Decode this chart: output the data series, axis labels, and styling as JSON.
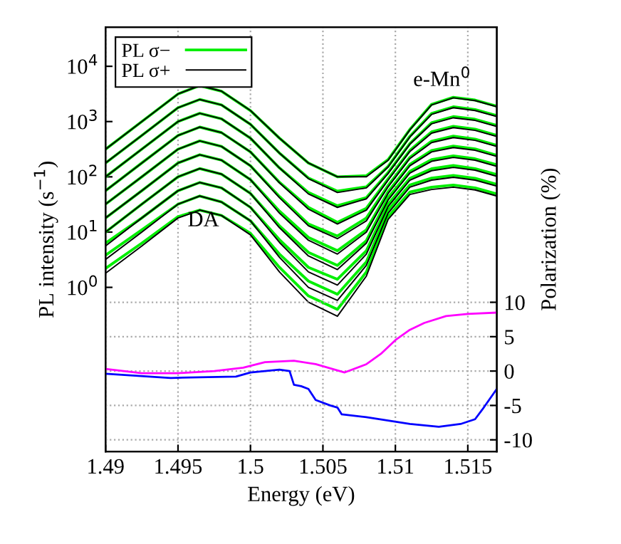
{
  "chart_data": {
    "type": "line",
    "xlabel": "Energy (eV)",
    "ylabel": "PL intensity (s$^{−1}$)",
    "y2label": "Polarization (%)",
    "x": [
      1.49,
      1.4925,
      1.495,
      1.4965,
      1.498,
      1.5,
      1.502,
      1.504,
      1.506,
      1.508,
      1.5095,
      1.511,
      1.5125,
      1.514,
      1.5155,
      1.517
    ],
    "xlim": [
      1.49,
      1.517
    ],
    "xticks": [
      1.49,
      1.495,
      1.5,
      1.505,
      1.51,
      1.515
    ],
    "log": "y",
    "ylim": [
      0.00107,
      51000
    ],
    "yticks": [
      {
        "value": 1,
        "label": "10$^{0}$"
      },
      {
        "value": 10,
        "label": "10$^{1}$"
      },
      {
        "value": 100,
        "label": "10$^{2}$"
      },
      {
        "value": 1000,
        "label": "10$^{3}$"
      },
      {
        "value": 10000,
        "label": "10$^{4}$"
      }
    ],
    "y2lim": [
      -11.7,
      50
    ],
    "y2ticks": [
      -10,
      -5,
      0,
      5,
      10
    ],
    "grid": true,
    "legend": "top left",
    "annotations": [
      "DA",
      "e-Mn$^{0}$"
    ],
    "series": [
      {
        "name": "PL σ−",
        "color": "#00ee00",
        "values": [
          316,
          1000,
          3160,
          4470,
          3550,
          1580,
          501,
          178,
          100,
          105,
          205,
          720,
          2050,
          2750,
          2450,
          1900
        ]
      },
      {
        "color": "#00ee00",
        "values": [
          178,
          560,
          1780,
          2510,
          2000,
          891,
          269,
          95,
          55,
          66,
          155,
          540,
          1400,
          1850,
          1650,
          1280
        ]
      },
      {
        "color": "#00ee00",
        "values": [
          100,
          316,
          1000,
          1410,
          1120,
          501,
          145,
          52,
          30,
          42,
          120,
          400,
          950,
          1230,
          1100,
          850
        ]
      },
      {
        "color": "#00ee00",
        "values": [
          56,
          178,
          560,
          794,
          631,
          282,
          80,
          28,
          15,
          27,
          92,
          300,
          650,
          820,
          730,
          560
        ]
      },
      {
        "color": "#00ee00",
        "values": [
          32,
          100,
          316,
          447,
          355,
          158,
          44,
          14,
          8.5,
          18,
          70,
          225,
          440,
          545,
          480,
          370
        ]
      },
      {
        "color": "#00ee00",
        "values": [
          18,
          56,
          178,
          251,
          200,
          89,
          24,
          8.0,
          4.6,
          11,
          54,
          168,
          300,
          360,
          320,
          245
        ]
      },
      {
        "color": "#00ee00",
        "values": [
          10,
          32,
          100,
          141,
          112,
          50,
          13,
          4.3,
          2.5,
          7.0,
          42,
          125,
          205,
          240,
          212,
          165
        ]
      },
      {
        "color": "#00ee00",
        "values": [
          6.3,
          18,
          56,
          79,
          63,
          28,
          7.3,
          2.3,
          1.4,
          4.6,
          32,
          94,
          140,
          160,
          140,
          110
        ]
      },
      {
        "color": "#00ee00",
        "values": [
          3.8,
          11,
          32,
          45,
          35,
          16,
          4.0,
          1.3,
          0.75,
          2.9,
          25,
          71,
          95,
          106,
          94,
          73
        ]
      },
      {
        "color": "#00ee00",
        "values": [
          2.2,
          6.3,
          19,
          25,
          20,
          9.5,
          2.3,
          0.7,
          0.4,
          1.9,
          19,
          53,
          65,
          71,
          63,
          49
        ]
      },
      {
        "name": "PL σ+",
        "color": "#000000",
        "values": [
          316,
          1000,
          3160,
          4470,
          3550,
          1580,
          501,
          178,
          100,
          100,
          200,
          708,
          2000,
          2690,
          2400,
          1860
        ]
      },
      {
        "color": "#000000",
        "values": [
          178,
          560,
          1780,
          2510,
          2000,
          891,
          269,
          93,
          52,
          63,
          151,
          525,
          1350,
          1780,
          1580,
          1230
        ]
      },
      {
        "color": "#000000",
        "values": [
          100,
          316,
          1000,
          1410,
          1120,
          501,
          145,
          49,
          28,
          40,
          115,
          389,
          912,
          1170,
          1050,
          813
        ]
      },
      {
        "color": "#000000",
        "values": [
          56,
          178,
          560,
          794,
          631,
          282,
          78,
          26,
          14,
          25,
          87,
          288,
          617,
          776,
          692,
          537
        ]
      },
      {
        "color": "#000000",
        "values": [
          32,
          100,
          316,
          447,
          355,
          158,
          42,
          13,
          7.6,
          16,
          66,
          214,
          417,
          513,
          457,
          355
        ]
      },
      {
        "color": "#000000",
        "values": [
          18,
          56,
          178,
          251,
          200,
          89,
          22,
          7.1,
          4.0,
          10,
          50,
          158,
          282,
          339,
          302,
          234
        ]
      },
      {
        "color": "#000000",
        "values": [
          10,
          32,
          100,
          141,
          112,
          50,
          12,
          3.7,
          2.1,
          6.3,
          38,
          117,
          191,
          224,
          200,
          155
        ]
      },
      {
        "color": "#000000",
        "values": [
          5.6,
          18,
          56,
          79,
          63,
          28,
          6.5,
          1.9,
          1.1,
          4.0,
          29,
          87,
          129,
          148,
          132,
          102
        ]
      },
      {
        "color": "#000000",
        "values": [
          3.2,
          10,
          32,
          45,
          35,
          16,
          3.5,
          1.0,
          0.58,
          2.5,
          22,
          65,
          87,
          98,
          87,
          68
        ]
      },
      {
        "color": "#000000",
        "values": [
          1.8,
          5.6,
          18,
          25,
          20,
          8.9,
          1.9,
          0.54,
          0.3,
          1.6,
          17,
          48,
          59,
          65,
          58,
          45
        ]
      },
      {
        "color": "#ff00ff",
        "axis": "y2",
        "x": [
          1.49,
          1.4925,
          1.495,
          1.4975,
          1.4995,
          1.501,
          1.503,
          1.5045,
          1.5065,
          1.508,
          1.509,
          1.51,
          1.511,
          1.512,
          1.5135,
          1.515,
          1.517
        ],
        "values": [
          0.3,
          -0.3,
          -0.3,
          0,
          0.5,
          1.3,
          1.5,
          1,
          -0.2,
          1,
          2.5,
          4.5,
          6,
          7,
          8,
          8.3,
          8.5
        ]
      },
      {
        "color": "#0000ff",
        "axis": "y2",
        "x": [
          1.49,
          1.4945,
          1.499,
          1.5,
          1.502,
          1.5027,
          1.503,
          1.5035,
          1.504,
          1.5045,
          1.5055,
          1.506,
          1.5063,
          1.508,
          1.511,
          1.513,
          1.5145,
          1.5155,
          1.516,
          1.517
        ],
        "values": [
          -0.4,
          -1,
          -0.8,
          -0.2,
          0.2,
          0,
          -2,
          -2.2,
          -2.6,
          -4.2,
          -5,
          -5.3,
          -6.3,
          -6.7,
          -7.7,
          -8.1,
          -7.7,
          -7,
          -5.6,
          -2.6
        ]
      }
    ]
  }
}
